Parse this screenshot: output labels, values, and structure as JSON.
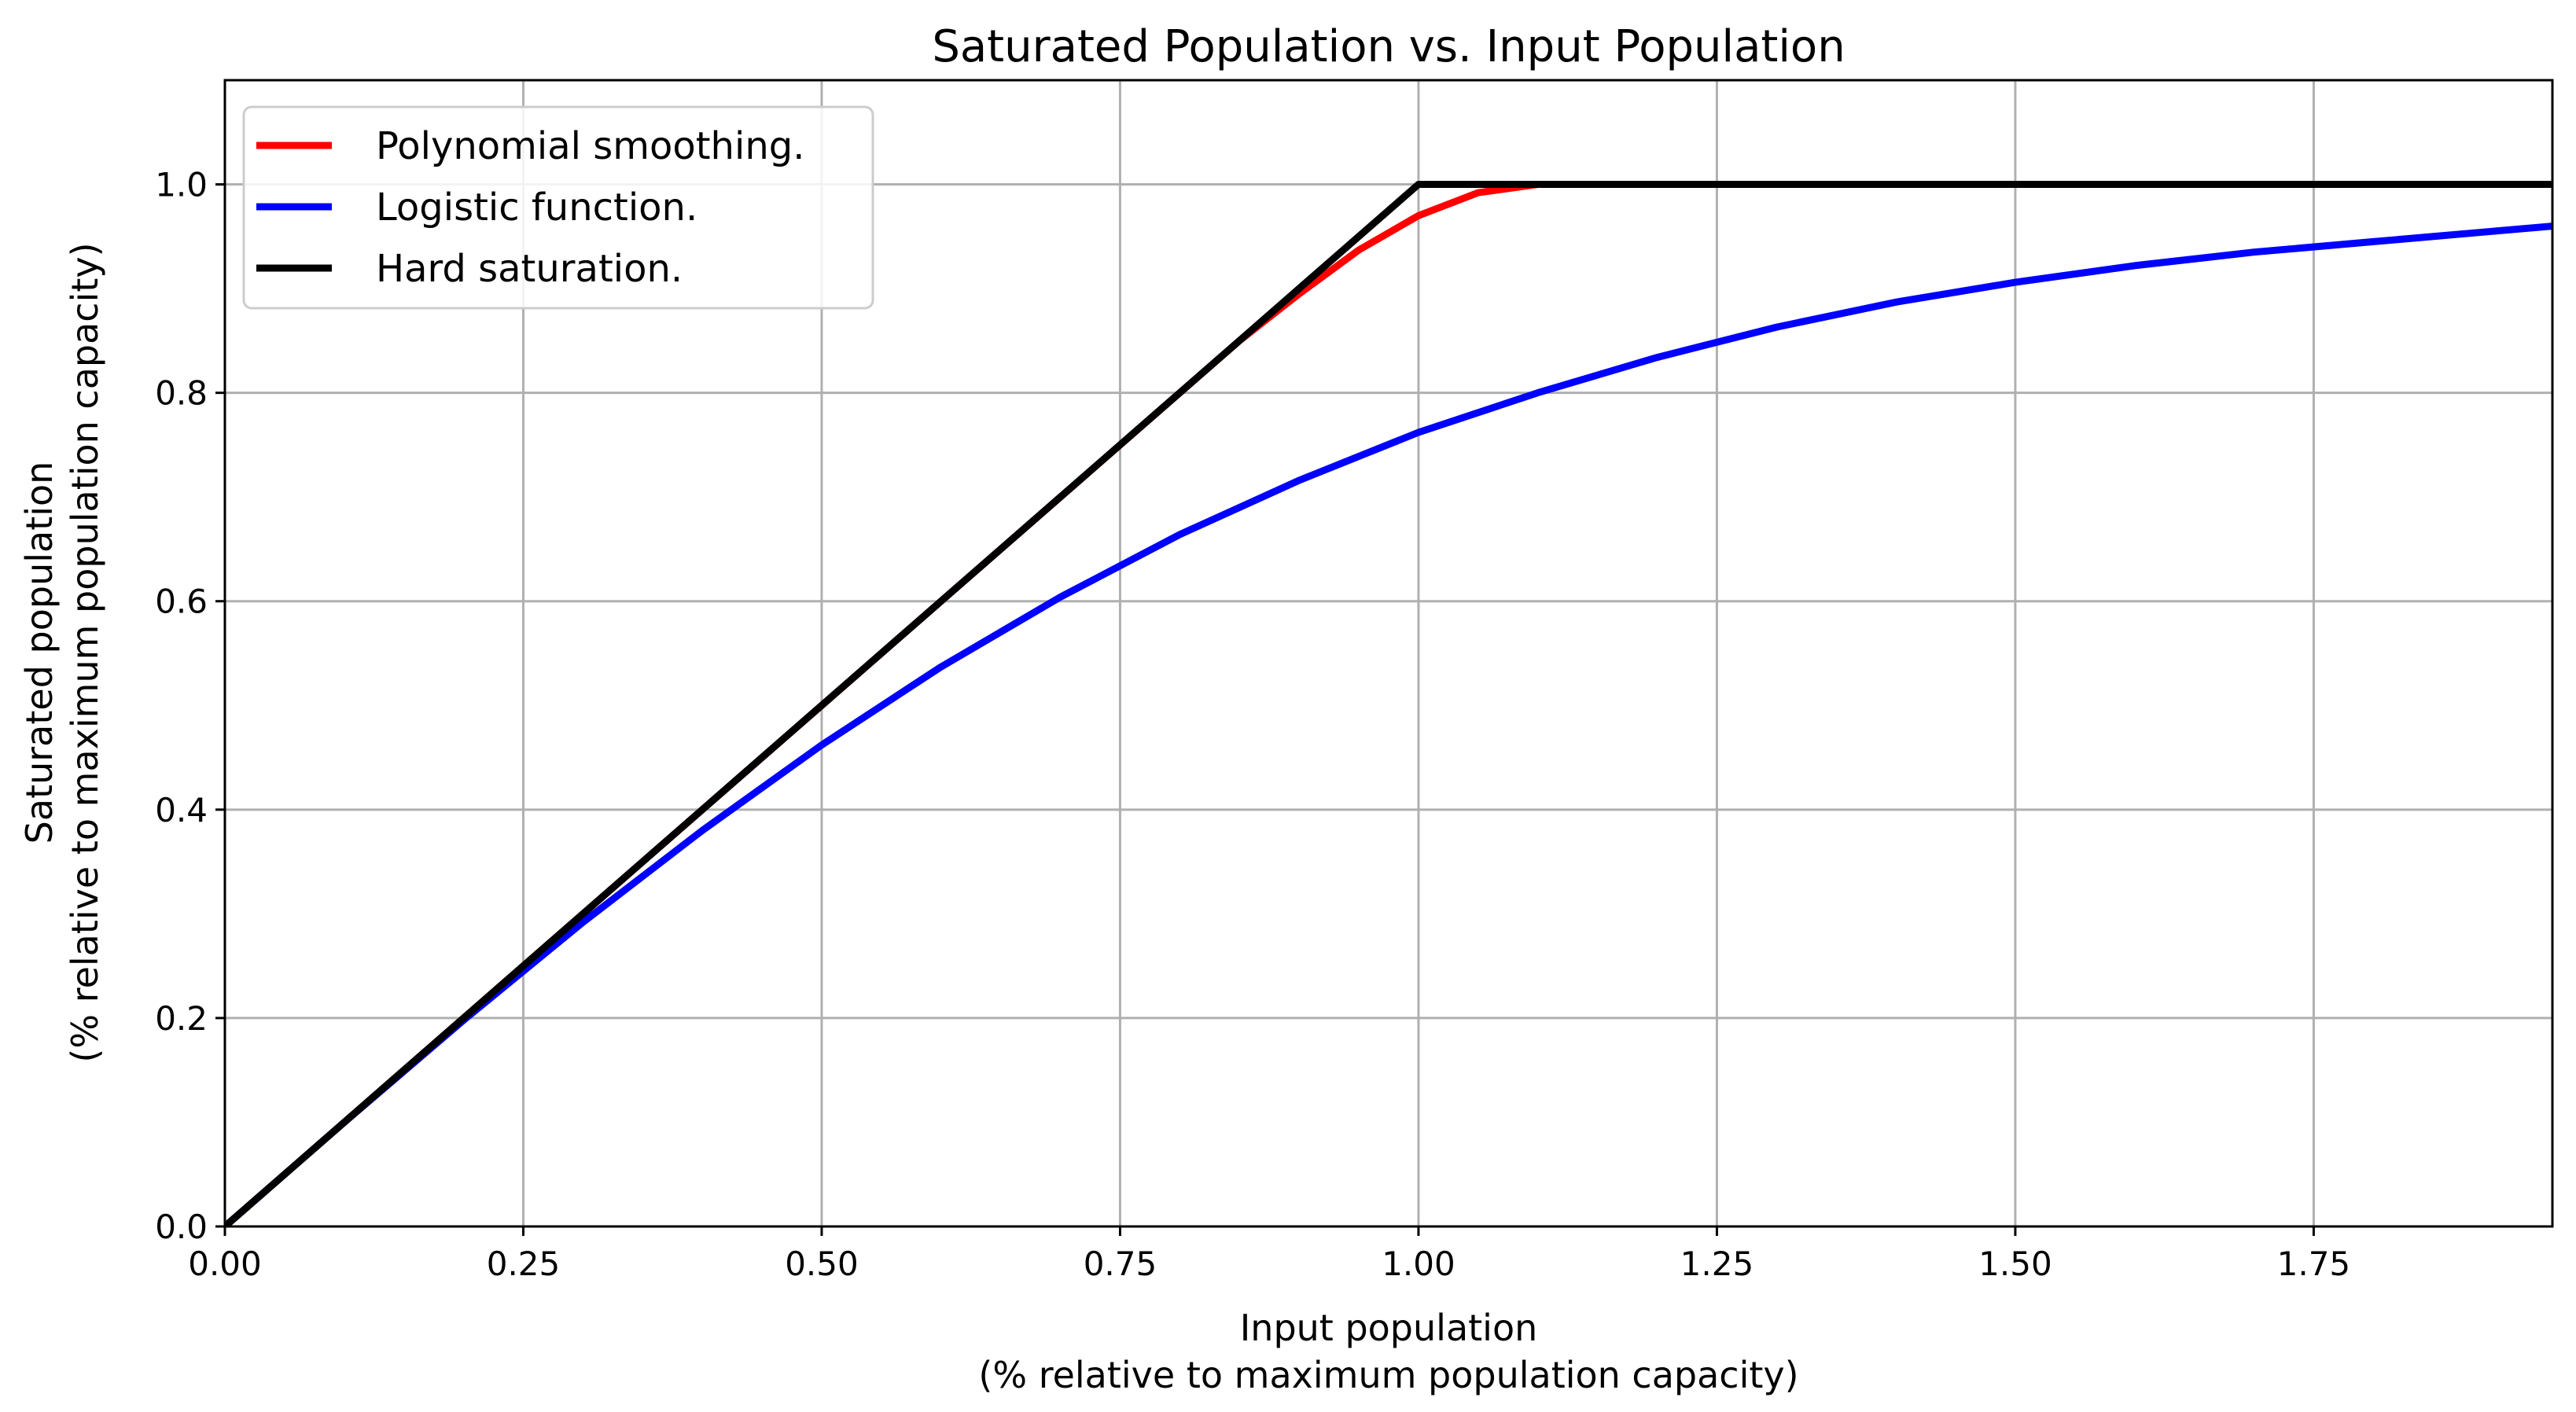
{
  "chart_data": {
    "type": "line",
    "title": "Saturated Population vs. Input Population",
    "xlabel": [
      "Input population",
      "(% relative to maximum population capacity)"
    ],
    "ylabel": [
      "Saturated population",
      "(% relative to maximum population capacity)"
    ],
    "xlim": [
      0,
      1.95
    ],
    "ylim": [
      0,
      1.1
    ],
    "xticks": [
      0.0,
      0.25,
      0.5,
      0.75,
      1.0,
      1.25,
      1.5,
      1.75
    ],
    "xtick_labels": [
      "0.00",
      "0.25",
      "0.50",
      "0.75",
      "1.00",
      "1.25",
      "1.50",
      "1.75"
    ],
    "yticks": [
      0.0,
      0.2,
      0.4,
      0.6,
      0.8,
      1.0
    ],
    "ytick_labels": [
      "0.0",
      "0.2",
      "0.4",
      "0.6",
      "0.8",
      "1.0"
    ],
    "grid": true,
    "legend_position": "top-left",
    "series": [
      {
        "name": "Polynomial smoothing.",
        "color": "#ff0000",
        "x": [
          0,
          0.1,
          0.2,
          0.3,
          0.4,
          0.5,
          0.6,
          0.7,
          0.8,
          0.85,
          0.9,
          0.95,
          1.0,
          1.05,
          1.1,
          1.2,
          1.4,
          1.6,
          1.8,
          1.95
        ],
        "y": [
          0,
          0.1,
          0.2,
          0.3,
          0.4,
          0.5,
          0.6,
          0.7,
          0.8,
          0.85,
          0.895,
          0.937,
          0.97,
          0.992,
          1.0,
          1.0,
          1.0,
          1.0,
          1.0,
          1.0
        ]
      },
      {
        "name": "Logistic function.",
        "color": "#0000ff",
        "x": [
          0,
          0.1,
          0.2,
          0.3,
          0.4,
          0.5,
          0.6,
          0.7,
          0.8,
          0.9,
          1.0,
          1.1,
          1.2,
          1.3,
          1.4,
          1.5,
          1.6,
          1.7,
          1.8,
          1.9,
          1.95
        ],
        "y": [
          0,
          0.1,
          0.198,
          0.292,
          0.38,
          0.462,
          0.537,
          0.604,
          0.664,
          0.716,
          0.762,
          0.8,
          0.834,
          0.863,
          0.887,
          0.906,
          0.922,
          0.935,
          0.945,
          0.955,
          0.96
        ]
      },
      {
        "name": "Hard saturation.",
        "color": "#000000",
        "x": [
          0,
          1.0,
          1.95
        ],
        "y": [
          0,
          1.0,
          1.0
        ]
      }
    ]
  }
}
